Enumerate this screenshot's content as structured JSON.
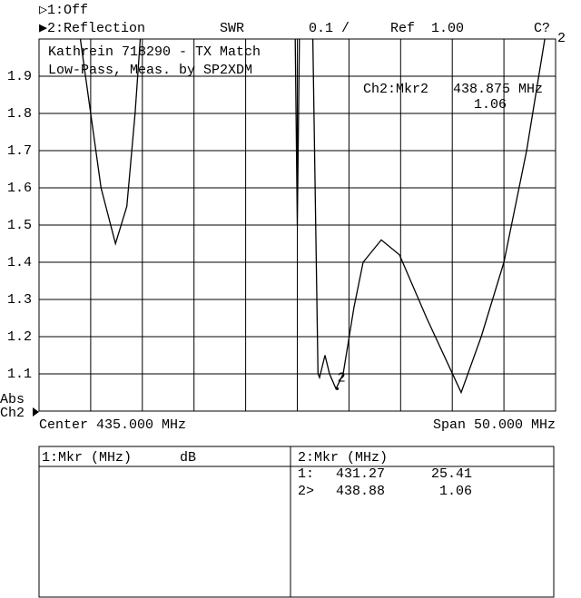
{
  "header": {
    "ch1": "▷1:Off",
    "ch2": "▶2:Reflection",
    "format": "SWR",
    "scale": "0.1 /",
    "ref": "Ref  1.00",
    "cal": "C?",
    "ch_num": "2",
    "abs": "Abs",
    "ch_label": "Ch2"
  },
  "chart_data": {
    "type": "line",
    "title": "Kathrein 718290 - TX Match",
    "subtitle": "Low-Pass, Meas. by SP2XDM",
    "marker_readout": "Ch2:Mkr2   438.875 MHz",
    "marker_value_label": "1.06",
    "center_label": "Center 435.000 MHz",
    "span_label": "Span 50.000 MHz",
    "x": [
      414.0,
      415.0,
      416.0,
      417.4,
      418.5,
      419.3,
      419.8,
      null,
      434.8,
      435.0,
      435.2,
      null,
      436.5,
      437.0,
      437.15,
      437.68,
      438.12,
      438.74,
      439.44,
      440.49,
      441.37,
      443.13,
      444.89,
      447.52,
      450.86,
      452.8,
      455.0,
      457.2,
      458.95
    ],
    "series": [
      {
        "name": "Reflection",
        "color": "#000000",
        "values": [
          2.0,
          1.8,
          1.6,
          1.45,
          1.55,
          1.8,
          2.0,
          null,
          2.0,
          1.5,
          2.0,
          null,
          2.0,
          1.1,
          1.09,
          1.15,
          1.1,
          1.06,
          1.1,
          1.28,
          1.4,
          1.46,
          1.42,
          1.25,
          1.05,
          1.2,
          1.4,
          1.7,
          2.0
        ]
      }
    ],
    "marker": {
      "label": "2",
      "x": 438.875,
      "value": 1.06
    },
    "xlim": [
      410,
      460
    ],
    "ylim": [
      1.0,
      2.0
    ],
    "yticks": [
      1.1,
      1.2,
      1.3,
      1.4,
      1.5,
      1.6,
      1.7,
      1.8,
      1.9
    ],
    "grid": true
  },
  "marker_table": {
    "left_header": "1:Mkr (MHz)",
    "left_unit": "dB",
    "right_header": "2:Mkr (MHz)",
    "rows": [
      [
        "1:",
        "431.27",
        "25.41"
      ],
      [
        "2>",
        "438.88",
        "1.06"
      ]
    ]
  }
}
